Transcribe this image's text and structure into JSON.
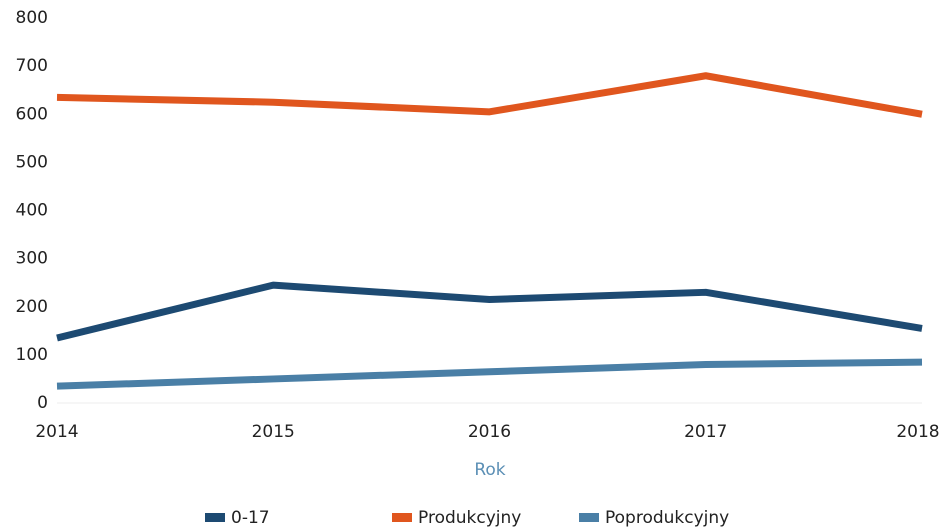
{
  "chart_data": {
    "type": "line",
    "x_label": "Rok",
    "categories": [
      "2014",
      "2015",
      "2016",
      "2017",
      "2018"
    ],
    "series": [
      {
        "name": "0-17",
        "color": "#1d4a72",
        "values": [
          135,
          245,
          215,
          230,
          155
        ]
      },
      {
        "name": "Produkcyjny",
        "color": "#e0561e",
        "values": [
          635,
          625,
          605,
          680,
          600
        ]
      },
      {
        "name": "Poprodukcyjny",
        "color": "#4a7fa6",
        "values": [
          35,
          50,
          65,
          80,
          85
        ]
      }
    ],
    "ylim": [
      0,
      800
    ],
    "yticks": [
      0,
      100,
      200,
      300,
      400,
      500,
      600,
      700,
      800
    ],
    "grid": false,
    "legend": "bottom"
  }
}
